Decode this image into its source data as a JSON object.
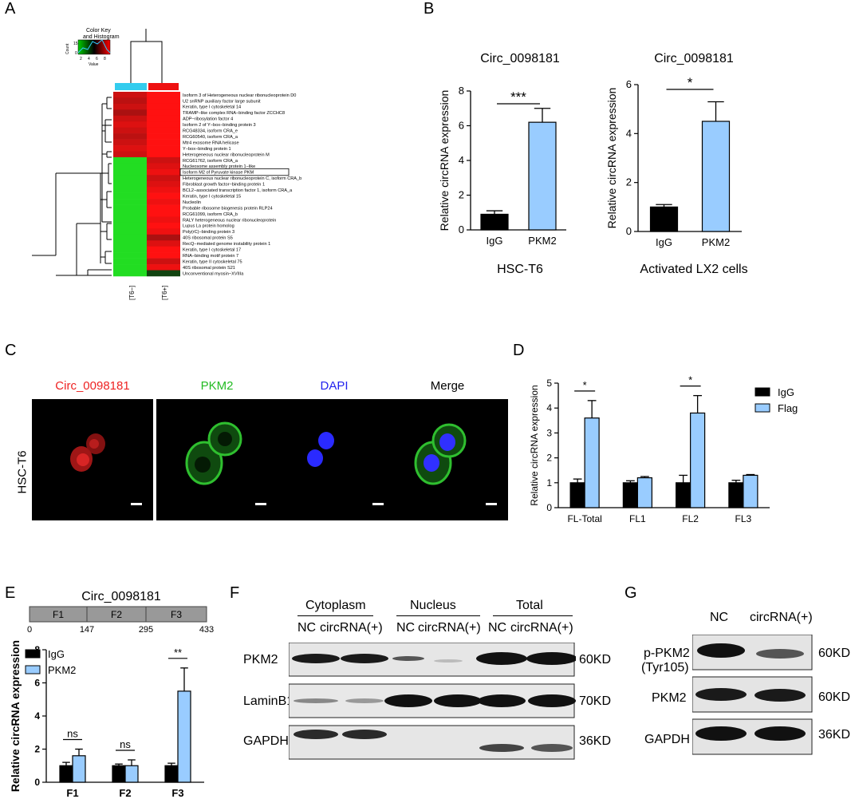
{
  "panels": {
    "A": "A",
    "B": "B",
    "C": "C",
    "D": "D",
    "E": "E",
    "F": "F",
    "G": "G"
  },
  "heatmap": {
    "color_key_title": "Color Key",
    "color_key_subtitle": "and Histogram",
    "color_key_ylabel": "Count",
    "color_key_xlabel": "Value",
    "color_key_ticks": [
      "2",
      "4",
      "6",
      "8"
    ],
    "count_ticks": [
      "0",
      "15"
    ],
    "columns": [
      "[T6−]",
      "[T6+]"
    ],
    "column_colors": [
      "#33ccee",
      "#ee1111"
    ],
    "boxed_row": "Isoform M2 of Pyruvate kinase PKM",
    "rows": [
      "Isoform 3 of Heterogeneous nuclear ribonucleoprotein D0",
      "U2 snRNP auxiliary factor large subunit",
      "Keratin, type I cytoskeletal 14",
      "TRAMP−like complex RNA−binding factor ZCCHC8",
      "ADP−ribosylation factor 4",
      "Isoform 2 of Y−box−binding protein 3",
      "RCG48334, isoform CRA_e",
      "RCG60540, isoform CRA_a",
      "Mtr4 exosome RNA helicase",
      "Y−box−binding protein 1",
      "Heterogeneous nuclear ribonucleoprotein M",
      "RCG61762, isoform CRA_a",
      "Nucleosome assembly protein 1−like",
      "Isoform M2 of Pyruvate kinase PKM",
      "Heterogeneous nuclear ribonucleoprotein C, isoform CRA_b",
      "Fibroblast growth factor−binding protein 1",
      "BCL2−associated transcription factor 1, isoform CRA_a",
      "Keratin, type I cytoskeletal 15",
      "Nucleolin",
      "Probable ribosome biogenesis protein RLP24",
      "RCG61099, isoform CRA_b",
      "RALY heterogeneous nuclear ribonucleoprotein",
      "Lupus La protein homolog",
      "Poly(rC)−binding protein 3",
      "40S ribosomal protein S5",
      "RecQ−mediated genome instability protein 1",
      "Keratin, type I cytoskeletal 17",
      "RNA−binding motif protein 7",
      "Keratin, type II cytoskeletal 75",
      "40S ribosomal protein S21",
      "Unconventional myosin−XVIIIa"
    ],
    "cells_t6_minus": [
      "#cc1111",
      "#bb1111",
      "#cc1111",
      "#aa1111",
      "#cc1111",
      "#dd1111",
      "#cc1111",
      "#bb1111",
      "#cc1111",
      "#dd1111",
      "#cc1111",
      "#22dd22",
      "#22dd22",
      "#22dd22",
      "#22dd22",
      "#22dd22",
      "#22dd22",
      "#22dd22",
      "#22dd22",
      "#22dd22",
      "#22dd22",
      "#22dd22",
      "#22dd22",
      "#22dd22",
      "#22dd22",
      "#22dd22",
      "#22dd22",
      "#22dd22",
      "#22dd22",
      "#22dd22",
      "#22dd22"
    ],
    "cells_t6_plus": [
      "#ff1111",
      "#ff1111",
      "#ff1111",
      "#ff1111",
      "#ff1111",
      "#ff1111",
      "#ff1111",
      "#ff1111",
      "#ff1111",
      "#ff1111",
      "#ff1111",
      "#cc1111",
      "#dd1111",
      "#ee1111",
      "#cc1111",
      "#dd1111",
      "#ee1111",
      "#ff1111",
      "#ee1111",
      "#ff1111",
      "#ff1111",
      "#ee1111",
      "#ff1111",
      "#ee1111",
      "#aa1111",
      "#dd1111",
      "#ff1111",
      "#ff1111",
      "#cc1111",
      "#ee1111",
      "#114411"
    ]
  },
  "chart_data": [
    {
      "type": "bar",
      "title": "Circ_0098181",
      "xlabel": "HSC-T6",
      "ylabel": "Relative circRNA expression",
      "categories": [
        "IgG",
        "PKM2"
      ],
      "values": [
        0.9,
        6.2
      ],
      "errors": [
        0.2,
        0.8
      ],
      "colors": [
        "#000000",
        "#99ccff"
      ],
      "ylim": [
        0,
        8
      ],
      "yticks": [
        "0",
        "2",
        "4",
        "6",
        "8"
      ],
      "significance": "***"
    },
    {
      "type": "bar",
      "title": "Circ_0098181",
      "xlabel": "Activated LX2 cells",
      "ylabel": "Relative circRNA expression",
      "categories": [
        "IgG",
        "PKM2"
      ],
      "values": [
        1.0,
        4.5
      ],
      "errors": [
        0.1,
        0.8
      ],
      "colors": [
        "#000000",
        "#99ccff"
      ],
      "ylim": [
        0,
        6
      ],
      "yticks": [
        "0",
        "2",
        "4",
        "6"
      ],
      "significance": "*"
    },
    {
      "type": "bar",
      "ylabel": "Relative circRNA expression",
      "categories": [
        "FL-Total",
        "FL1",
        "FL2",
        "FL3"
      ],
      "series": [
        {
          "name": "IgG",
          "color": "#000000",
          "values": [
            1.0,
            1.0,
            1.0,
            1.0
          ],
          "errors": [
            0.15,
            0.08,
            0.3,
            0.1
          ]
        },
        {
          "name": "Flag",
          "color": "#99ccff",
          "values": [
            3.6,
            1.2,
            3.8,
            1.3
          ],
          "errors": [
            0.7,
            0.05,
            0.7,
            0.03
          ]
        }
      ],
      "ylim": [
        0,
        5
      ],
      "yticks": [
        "0",
        "1",
        "2",
        "3",
        "4",
        "5"
      ],
      "significance": [
        "*",
        "",
        "*",
        ""
      ],
      "legend": "top-right"
    },
    {
      "type": "bar",
      "ylabel": "Relative circRNA expression",
      "categories": [
        "F1",
        "F2",
        "F3"
      ],
      "series": [
        {
          "name": "IgG",
          "color": "#000000",
          "values": [
            1.0,
            1.0,
            1.0
          ],
          "errors": [
            0.2,
            0.1,
            0.15
          ]
        },
        {
          "name": "PKM2",
          "color": "#99ccff",
          "values": [
            1.6,
            1.0,
            5.5
          ],
          "errors": [
            0.4,
            0.35,
            1.4
          ]
        }
      ],
      "ylim": [
        0,
        8
      ],
      "yticks": [
        "0",
        "2",
        "4",
        "6",
        "8"
      ],
      "significance": [
        "ns",
        "ns",
        "**"
      ],
      "legend": "top-left"
    }
  ],
  "panel_c": {
    "row_label": "HSC-T6",
    "channels": [
      {
        "label": "Circ_0098181",
        "color": "#ee2222"
      },
      {
        "label": "PKM2",
        "color": "#22bb22"
      },
      {
        "label": "DAPI",
        "color": "#2222ee"
      },
      {
        "label": "Merge",
        "color": "#000000"
      }
    ]
  },
  "panel_e_map": {
    "title": "Circ_0098181",
    "segments": [
      "F1",
      "F2",
      "F3"
    ],
    "ticks": [
      "0",
      "147",
      "295",
      "433"
    ]
  },
  "panel_f": {
    "groups": [
      "Cytoplasm",
      "Nucleus",
      "Total"
    ],
    "lanes": [
      "NC",
      "circRNA(+)",
      "NC",
      "circRNA(+)",
      "NC",
      "circRNA(+)"
    ],
    "rows": [
      {
        "label": "PKM2",
        "size": "60KD"
      },
      {
        "label": "LaminB1",
        "size": "70KD"
      },
      {
        "label": "GAPDH",
        "size": "36KD"
      }
    ]
  },
  "panel_g": {
    "lanes": [
      "NC",
      "circRNA(+)"
    ],
    "rows": [
      {
        "label": "p-PKM2",
        "label2": "(Tyr105)",
        "size": "60KD"
      },
      {
        "label": "PKM2",
        "size": "60KD"
      },
      {
        "label": "GAPDH",
        "size": "36KD"
      }
    ]
  }
}
